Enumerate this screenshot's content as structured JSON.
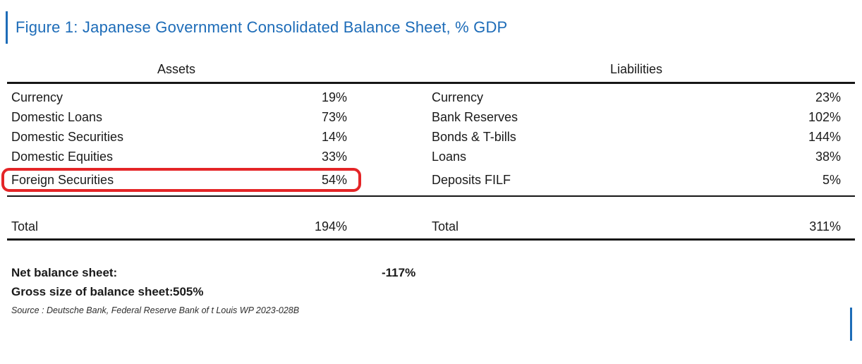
{
  "figure": {
    "title": "Figure 1: Japanese Government Consolidated Balance Sheet, % GDP",
    "title_color": "#1D6CB8",
    "highlight_color": "#E42527"
  },
  "table": {
    "assets_header": "Assets",
    "liabilities_header": "Liabilities",
    "assets_rows": [
      {
        "label": "Currency",
        "value": "19%"
      },
      {
        "label": "Domestic Loans",
        "value": "73%"
      },
      {
        "label": "Domestic Securities",
        "value": "14%"
      },
      {
        "label": "Domestic Equities",
        "value": "33%"
      },
      {
        "label": "Foreign Securities",
        "value": "54%"
      }
    ],
    "liabilities_rows": [
      {
        "label": "Currency",
        "value": "23%"
      },
      {
        "label": "Bank Reserves",
        "value": "102%"
      },
      {
        "label": "Bonds & T-bills",
        "value": "144%"
      },
      {
        "label": "Loans",
        "value": "38%"
      },
      {
        "label": "Deposits FILF",
        "value": "5%"
      }
    ],
    "totals": {
      "assets": {
        "label": "Total",
        "value": "194%"
      },
      "liabilities": {
        "label": "Total",
        "value": "311%"
      }
    },
    "highlighted_row": "Foreign Securities"
  },
  "summary": {
    "net_label": "Net balance sheet:",
    "net_value": "-117%",
    "gross_label": "Gross size of balance sheet:",
    "gross_value": "505%"
  },
  "source": "Source : Deutsche Bank, Federal Reserve Bank of t Louis WP 2023-028B",
  "chart_data": {
    "type": "table",
    "title": "Figure 1: Japanese Government Consolidated Balance Sheet, % GDP",
    "unit": "% of GDP",
    "columns": [
      "Assets",
      "% GDP",
      "Liabilities",
      "% GDP"
    ],
    "assets": [
      {
        "item": "Currency",
        "pct_gdp": 19
      },
      {
        "item": "Domestic Loans",
        "pct_gdp": 73
      },
      {
        "item": "Domestic Securities",
        "pct_gdp": 14
      },
      {
        "item": "Domestic Equities",
        "pct_gdp": 33
      },
      {
        "item": "Foreign Securities",
        "pct_gdp": 54
      },
      {
        "item": "Total",
        "pct_gdp": 194
      }
    ],
    "liabilities": [
      {
        "item": "Currency",
        "pct_gdp": 23
      },
      {
        "item": "Bank Reserves",
        "pct_gdp": 102
      },
      {
        "item": "Bonds & T-bills",
        "pct_gdp": 144
      },
      {
        "item": "Loans",
        "pct_gdp": 38
      },
      {
        "item": "Deposits FILF",
        "pct_gdp": 5
      },
      {
        "item": "Total",
        "pct_gdp": 311
      }
    ],
    "net_balance_sheet_pct_gdp": -117,
    "gross_size_pct_gdp": 505,
    "annotation": "Foreign Securities asset row circled in red",
    "legend_position": "none",
    "grid": "off",
    "source": "Source : Deutsche Bank, Federal Reserve Bank of t Louis WP 2023-028B"
  }
}
